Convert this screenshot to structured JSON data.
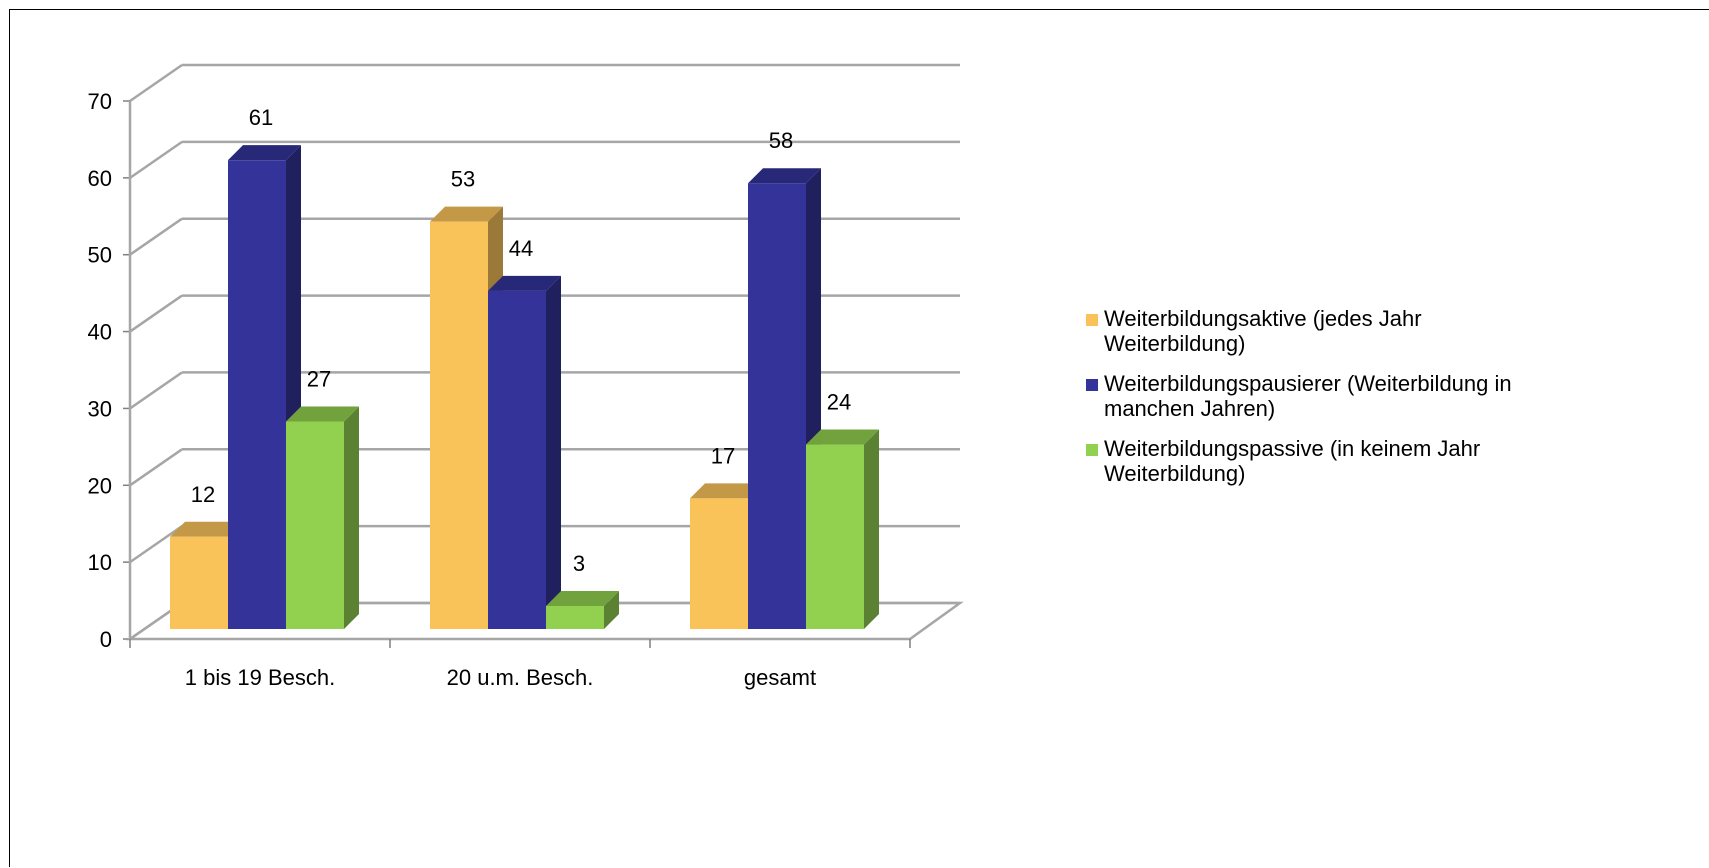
{
  "chart_data": {
    "type": "bar",
    "style": "3d-clustered-column",
    "categories": [
      "1 bis 19 Besch.",
      "20 u.m. Besch.",
      "gesamt"
    ],
    "series": [
      {
        "name": "Weiterbildungsaktive (jedes Jahr Weiterbildung)",
        "values": [
          12,
          53,
          17
        ],
        "color": "#FAC35A"
      },
      {
        "name": "Weiterbildungspausierer (Weiterbildung in manchen Jahren)",
        "values": [
          61,
          44,
          58
        ],
        "color": "#33339A"
      },
      {
        "name": "Weiterbildungspassive (in keinem Jahr Weiterbildung)",
        "values": [
          27,
          3,
          24
        ],
        "color": "#92D050"
      }
    ],
    "legend_lines": [
      [
        "Weiterbildungsaktive (jedes Jahr",
        "Weiterbildung)"
      ],
      [
        "Weiterbildungspausierer (Weiterbildung in",
        "manchen Jahren)"
      ],
      [
        "Weiterbildungspassive (in keinem Jahr",
        "Weiterbildung)"
      ]
    ],
    "ylim": [
      0,
      70
    ],
    "yticks": [
      0,
      10,
      20,
      30,
      40,
      50,
      60,
      70
    ],
    "grid": true,
    "legend_position": "right",
    "data_labels": true
  }
}
